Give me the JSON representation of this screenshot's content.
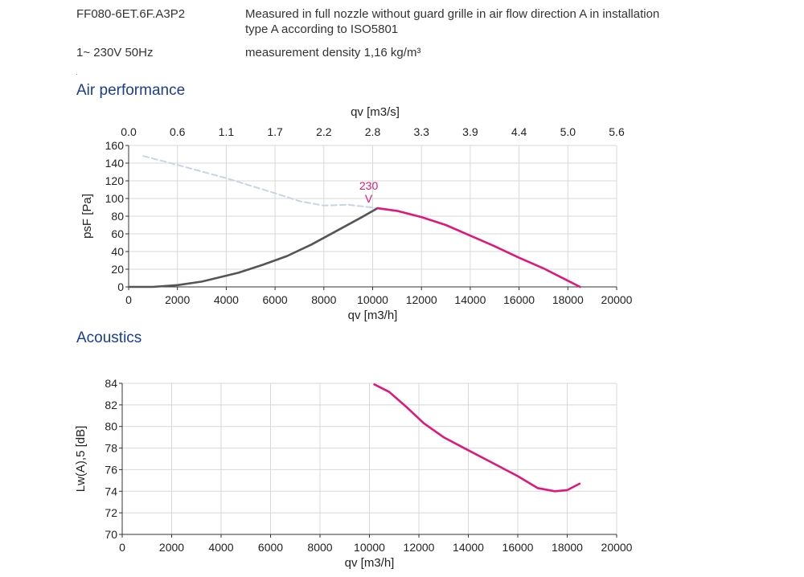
{
  "header": {
    "model": "FF080-6ET.6F.A3P2",
    "supply": "1~ 230V 50Hz",
    "measurement_line1": "Measured in full nozzle without guard grille in air flow direction A in installation",
    "measurement_line2": "type A according to ISO5801",
    "density": "measurement density 1,16 kg/m³"
  },
  "sections": {
    "air_performance": "Air performance",
    "acoustics": "Acoustics"
  },
  "colors": {
    "curve_magenta": "#e0187a",
    "curve_gray": "#555555",
    "curve_dashed": "#c8d4e6",
    "grid": "#d8d8d8",
    "title_blue": "#1a3d8f"
  },
  "chart_data": [
    {
      "type": "line",
      "name": "air-performance",
      "xlabel": "qv [m3/h]",
      "ylabel": "psF [Pa]",
      "top_axis_label": "qv [m3/s]",
      "xlim": [
        0,
        20000
      ],
      "ylim": [
        0,
        160
      ],
      "x_ticks": [
        "0",
        "2000",
        "4000",
        "6000",
        "8000",
        "10000",
        "12000",
        "14000",
        "16000",
        "18000",
        "20000"
      ],
      "y_ticks": [
        "0",
        "20",
        "40",
        "60",
        "80",
        "100",
        "120",
        "140",
        "160"
      ],
      "top_ticks": [
        "0.0",
        "0.6",
        "1.1",
        "1.7",
        "2.2",
        "2.8",
        "3.3",
        "3.9",
        "4.4",
        "5.0",
        "5.6"
      ],
      "curve_label_top": "230",
      "curve_label_bottom": "V",
      "grid": true,
      "series": [
        {
          "style": "dashed",
          "color": "#c8d4e6",
          "x": [
            600,
            2000,
            4000,
            6000,
            7000,
            8000,
            9000,
            10200
          ],
          "y": [
            148,
            138,
            123,
            106,
            97,
            92,
            93,
            89
          ]
        },
        {
          "style": "solid",
          "color": "#555555",
          "x": [
            0,
            1000,
            2000,
            3000,
            4500,
            5500,
            6500,
            7500,
            8500,
            9500,
            10200
          ],
          "y": [
            0,
            0,
            2,
            6,
            16,
            25,
            35,
            48,
            63,
            78,
            89
          ]
        },
        {
          "style": "solid",
          "color": "#e0187a",
          "x": [
            10200,
            11000,
            12000,
            13000,
            14000,
            15000,
            16000,
            17000,
            18000,
            18500
          ],
          "y": [
            89,
            86,
            79,
            70,
            58,
            46,
            33,
            21,
            7,
            0
          ]
        }
      ]
    },
    {
      "type": "line",
      "name": "acoustics",
      "xlabel": "qv [m3/h]",
      "ylabel": "Lw(A),5 [dB]",
      "xlim": [
        0,
        20000
      ],
      "ylim": [
        70,
        84
      ],
      "x_ticks": [
        "0",
        "2000",
        "4000",
        "6000",
        "8000",
        "10000",
        "12000",
        "14000",
        "16000",
        "18000",
        "20000"
      ],
      "y_ticks": [
        "70",
        "72",
        "74",
        "76",
        "78",
        "80",
        "82",
        "84"
      ],
      "grid": true,
      "series": [
        {
          "style": "solid",
          "color": "#e0187a",
          "x": [
            10200,
            10800,
            11500,
            12200,
            13000,
            14000,
            15000,
            16000,
            16800,
            17500,
            18000,
            18500
          ],
          "y": [
            83.9,
            83.2,
            81.8,
            80.3,
            79.0,
            77.8,
            76.6,
            75.4,
            74.3,
            74.0,
            74.1,
            74.7
          ]
        }
      ]
    }
  ]
}
